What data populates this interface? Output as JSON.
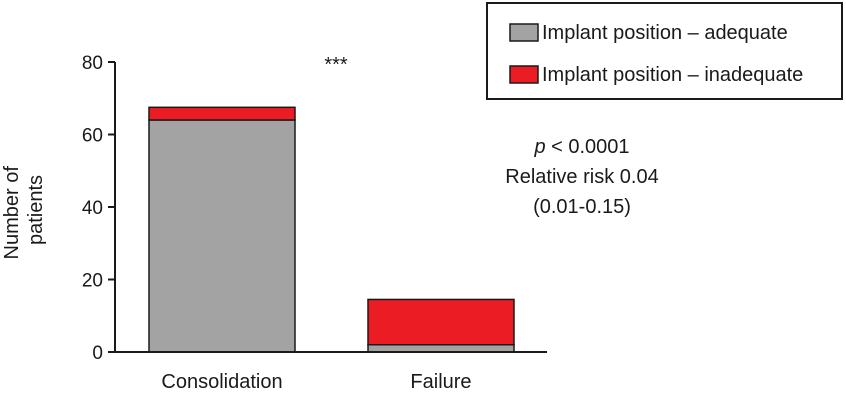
{
  "chart_data": {
    "type": "bar",
    "stacked": true,
    "categories": [
      "Consolidation",
      "Failure"
    ],
    "series": [
      {
        "name": "Implant position – adequate",
        "values": [
          64,
          2
        ],
        "color": "#a3a3a3"
      },
      {
        "name": "Implant position – inadequate",
        "values": [
          3.5,
          12.5
        ],
        "color": "#ec1c24"
      }
    ],
    "ylabel": [
      "Number of",
      "patients"
    ],
    "ylim": [
      0,
      80
    ],
    "yticks": [
      0,
      20,
      40,
      60,
      80
    ],
    "legend_position": "top-right",
    "grid": false,
    "significance_marker": "***",
    "annotation": {
      "p_label": "p",
      "p_value": " < 0.0001",
      "relative_risk": "Relative risk 0.04",
      "ci": "(0.01-0.15)"
    }
  }
}
